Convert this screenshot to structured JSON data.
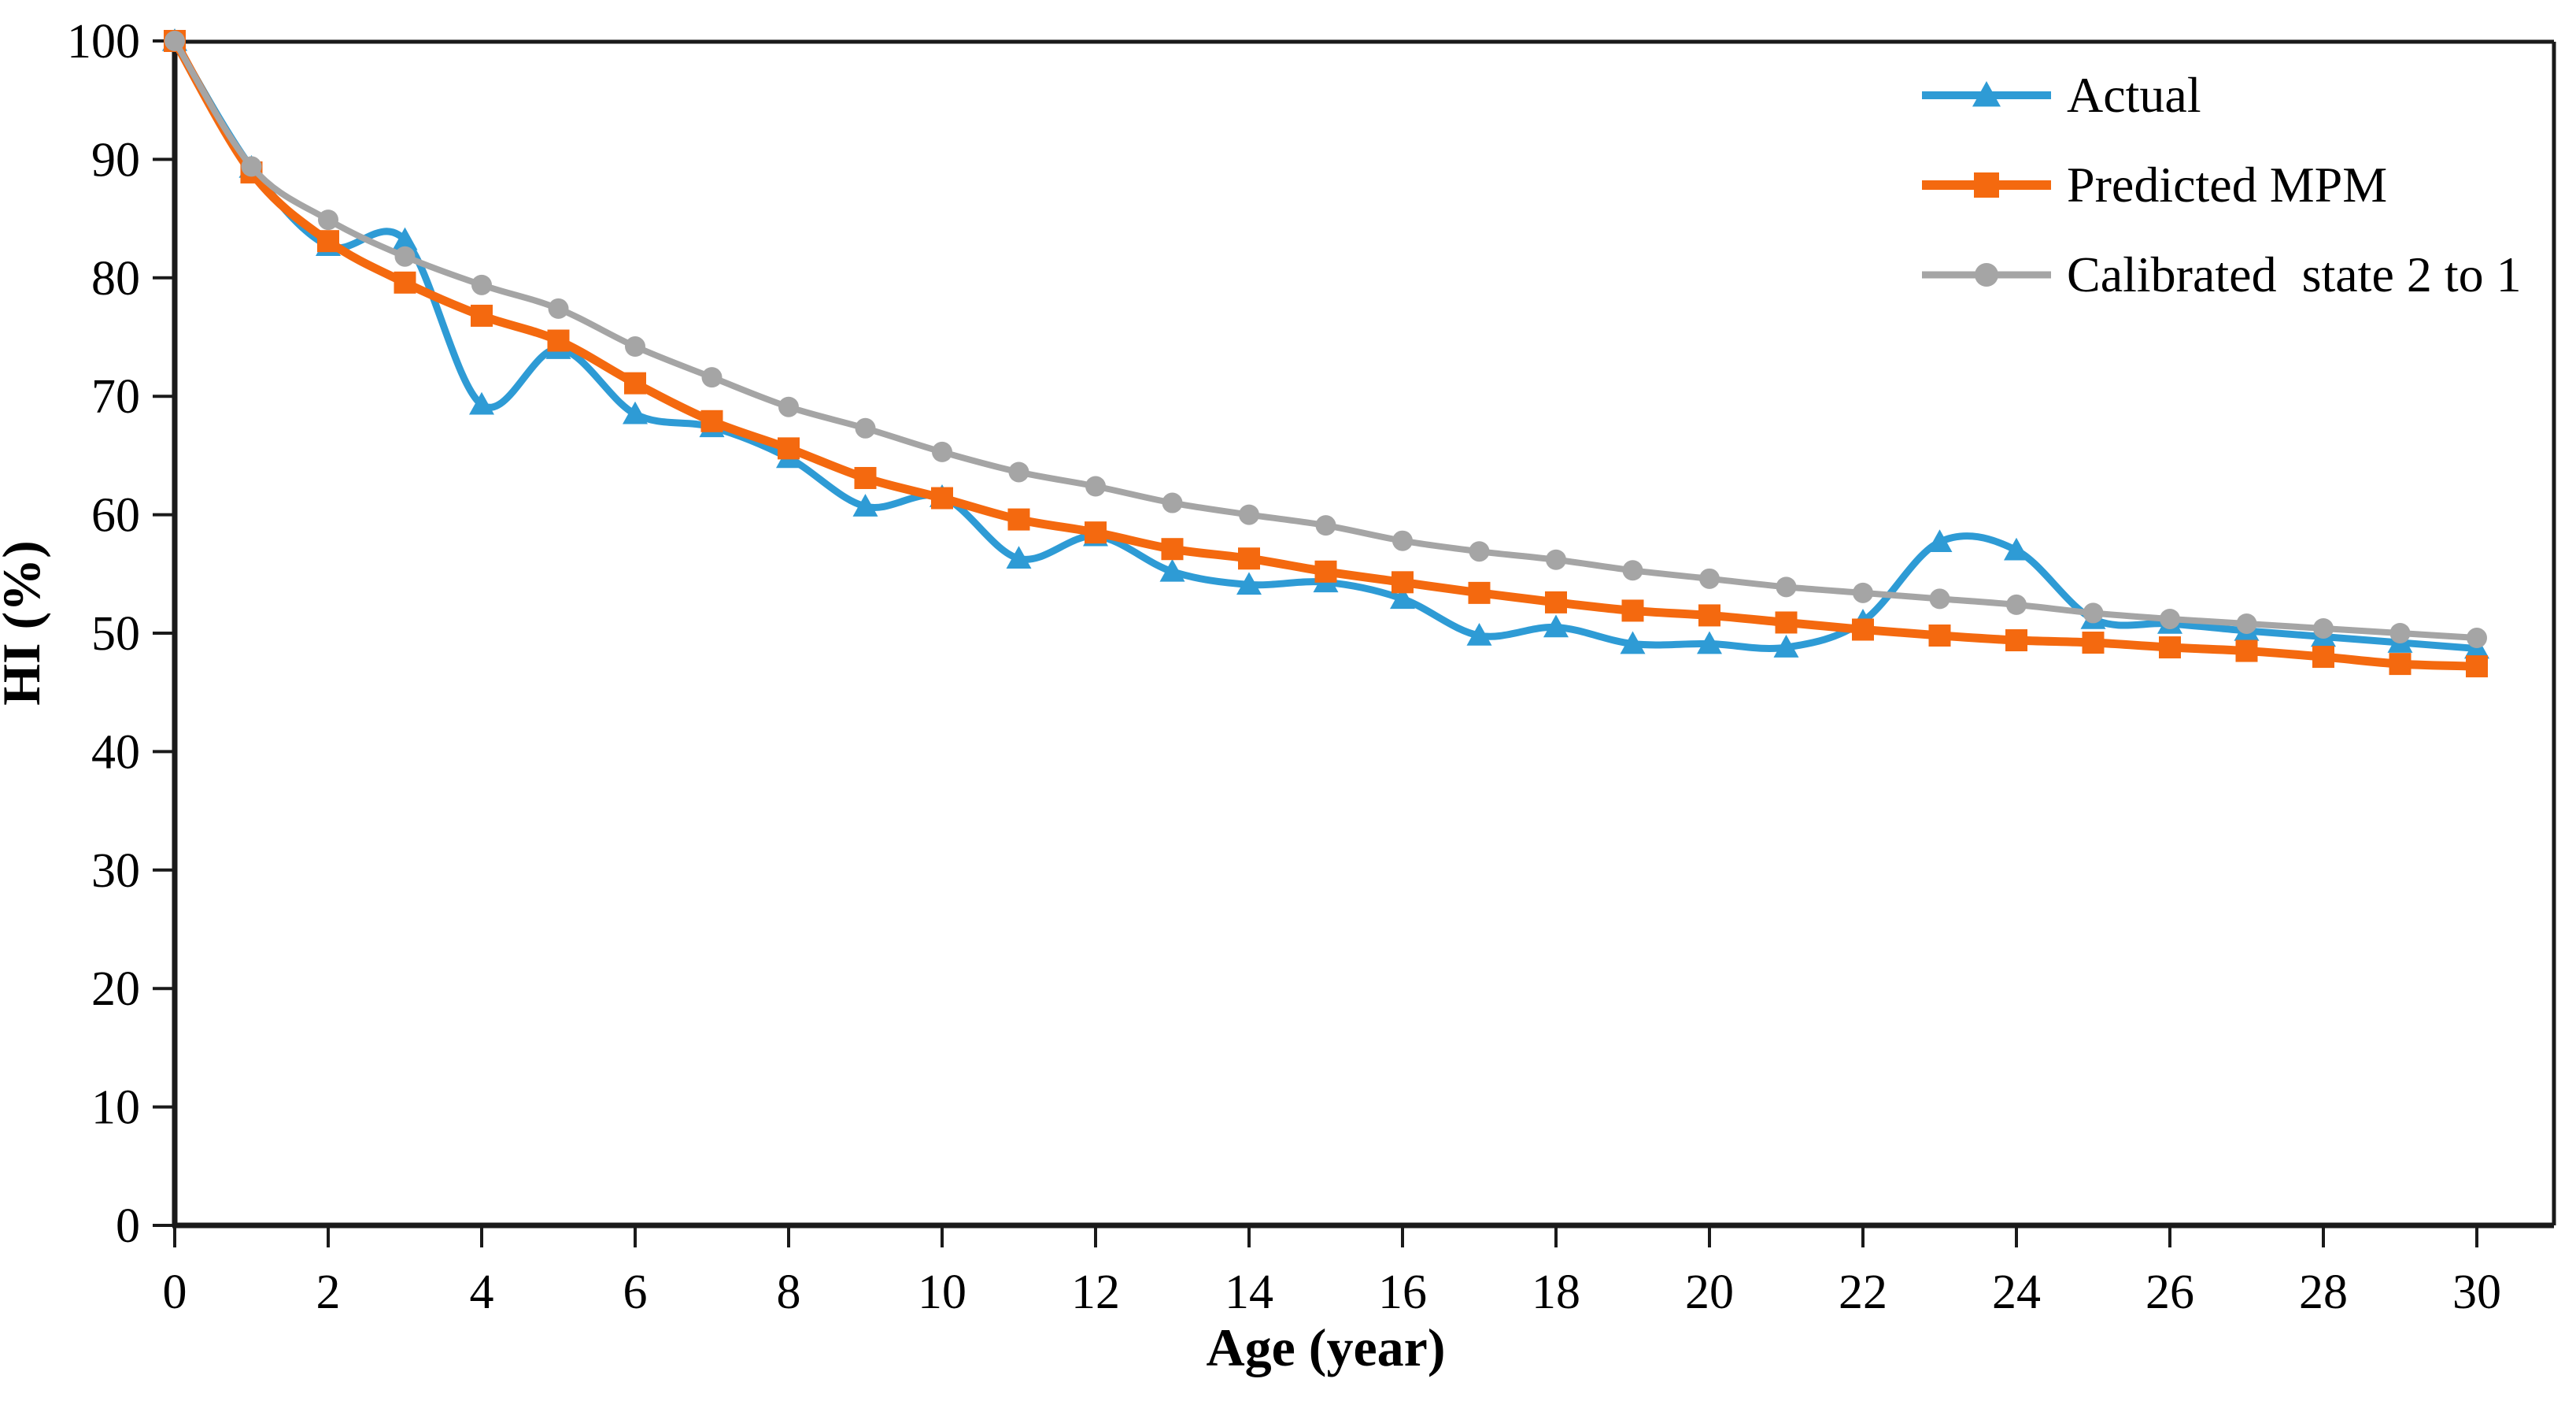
{
  "chart_data": {
    "type": "line",
    "title": "",
    "xlabel": "Age (year)",
    "ylabel": "HI (%)",
    "x": [
      0,
      1,
      2,
      3,
      4,
      5,
      6,
      7,
      8,
      9,
      10,
      11,
      12,
      13,
      14,
      15,
      16,
      17,
      18,
      19,
      20,
      21,
      22,
      23,
      24,
      25,
      26,
      27,
      28,
      29,
      30
    ],
    "xlim": [
      0,
      31
    ],
    "ylim": [
      0,
      100
    ],
    "x_ticks": [
      0,
      2,
      4,
      6,
      8,
      10,
      12,
      14,
      16,
      18,
      20,
      22,
      24,
      26,
      28,
      30
    ],
    "y_ticks": [
      0,
      10,
      20,
      30,
      40,
      50,
      60,
      70,
      80,
      90,
      100
    ],
    "grid": false,
    "legend_position": "top-right",
    "axis_color": "#1a1a1a",
    "series": [
      {
        "name": "Actual",
        "color": "#2E9BD5",
        "marker": "triangle",
        "smooth": true,
        "values": [
          100,
          89.3,
          82.7,
          83.2,
          69.3,
          74.0,
          68.5,
          67.4,
          64.8,
          60.7,
          61.5,
          56.3,
          58.2,
          55.2,
          54.1,
          54.3,
          52.9,
          49.8,
          50.5,
          49.1,
          49.1,
          48.8,
          51.0,
          57.7,
          57.0,
          51.2,
          50.8,
          50.2,
          49.7,
          49.2,
          48.7
        ]
      },
      {
        "name": "Predicted MPM",
        "color": "#F4690F",
        "marker": "square",
        "smooth": true,
        "values": [
          100,
          88.9,
          83.1,
          79.6,
          76.8,
          74.7,
          71.1,
          67.9,
          65.6,
          63.1,
          61.4,
          59.6,
          58.5,
          57.1,
          56.3,
          55.2,
          54.3,
          53.4,
          52.6,
          51.9,
          51.5,
          50.9,
          50.3,
          49.8,
          49.4,
          49.2,
          48.8,
          48.5,
          48.0,
          47.4,
          47.2
        ]
      },
      {
        "name": "Calibrated  state 2 to 1",
        "color": "#A5A5A5",
        "marker": "circle",
        "smooth": true,
        "values": [
          100,
          89.4,
          84.9,
          81.8,
          79.4,
          77.4,
          74.2,
          71.6,
          69.1,
          67.3,
          65.3,
          63.6,
          62.4,
          61.0,
          60.0,
          59.1,
          57.8,
          56.9,
          56.2,
          55.3,
          54.6,
          53.9,
          53.4,
          52.9,
          52.4,
          51.7,
          51.2,
          50.8,
          50.4,
          50.0,
          49.6
        ]
      }
    ]
  }
}
